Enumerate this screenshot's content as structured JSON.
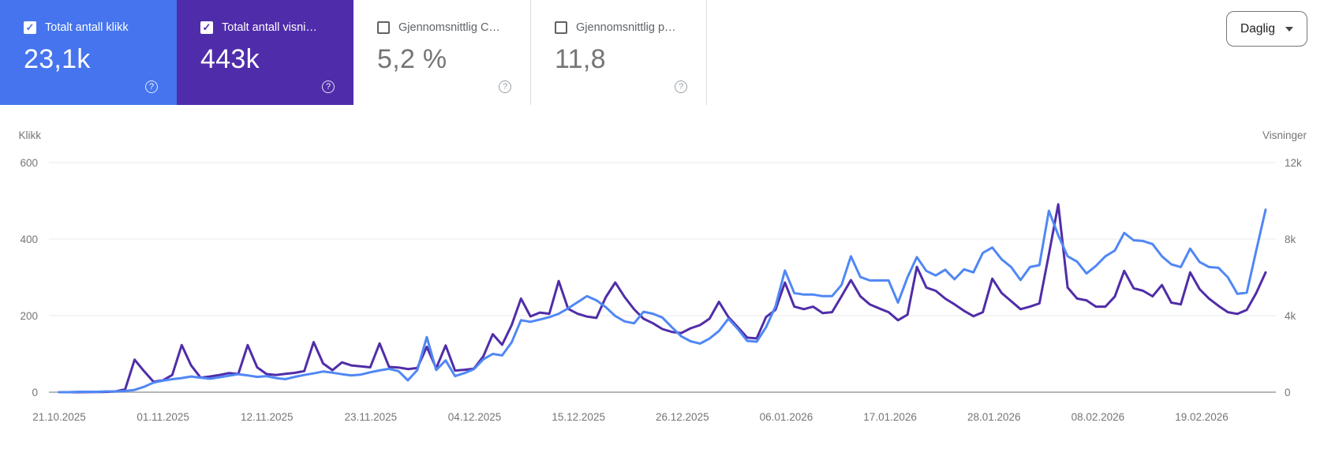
{
  "cards": [
    {
      "label": "Totalt antall klikk",
      "value": "23,1k",
      "checked": true,
      "bg": "#4574ee"
    },
    {
      "label": "Totalt antall visni…",
      "value": "443k",
      "checked": true,
      "bg": "#4f2daa"
    },
    {
      "label": "Gjennomsnittlig C…",
      "value": "5,2 %",
      "checked": false,
      "bg": ""
    },
    {
      "label": "Gjennomsnittlig p…",
      "value": "11,8",
      "checked": false,
      "bg": ""
    }
  ],
  "period_select": {
    "value": "Daglig"
  },
  "colors": {
    "clicks_line": "#5087f5",
    "impressions_line": "#502da8",
    "gridline": "#e9e9e9",
    "zero_line": "#9aa0a6",
    "axis_text": "#757575"
  },
  "chart_data": {
    "type": "line",
    "grid": "horizontal",
    "x_tick_labels": [
      "21.10.2025",
      "01.11.2025",
      "12.11.2025",
      "23.11.2025",
      "04.12.2025",
      "15.12.2025",
      "26.12.2025",
      "06.01.2026",
      "17.01.2026",
      "28.01.2026",
      "08.02.2026",
      "19.02.2026"
    ],
    "left_axis": {
      "title": "Klikk",
      "ticks_top_to_bottom": [
        "600",
        "400",
        "200",
        "0"
      ],
      "range": [
        0,
        600
      ]
    },
    "right_axis": {
      "title": "Visninger",
      "ticks_top_to_bottom": [
        "12k",
        "8k",
        "4k",
        "0"
      ],
      "range": [
        0,
        12000
      ]
    },
    "series": [
      {
        "name": "Visninger",
        "axis": "right",
        "color": "#502da8",
        "values": [
          0,
          0,
          0,
          5,
          10,
          15,
          40,
          150,
          1700,
          1100,
          550,
          620,
          900,
          2460,
          1400,
          760,
          820,
          900,
          1000,
          950,
          2460,
          1300,
          950,
          900,
          960,
          1010,
          1100,
          2620,
          1500,
          1150,
          1560,
          1400,
          1350,
          1300,
          2550,
          1320,
          1290,
          1210,
          1260,
          2370,
          1250,
          2440,
          1130,
          1170,
          1230,
          1870,
          3030,
          2480,
          3500,
          4890,
          3960,
          4160,
          4100,
          5810,
          4360,
          4100,
          3950,
          3880,
          4970,
          5730,
          4970,
          4330,
          3840,
          3600,
          3300,
          3150,
          3090,
          3340,
          3510,
          3840,
          4720,
          3930,
          3400,
          2850,
          2810,
          3930,
          4300,
          5730,
          4470,
          4340,
          4470,
          4130,
          4180,
          5010,
          5860,
          5010,
          4590,
          4380,
          4180,
          3760,
          4050,
          6550,
          5470,
          5300,
          4890,
          4590,
          4250,
          3970,
          4180,
          5930,
          5180,
          4760,
          4340,
          4470,
          4640,
          7200,
          9820,
          5470,
          4890,
          4800,
          4470,
          4470,
          5000,
          6340,
          5430,
          5300,
          5010,
          5600,
          4680,
          4590,
          6260,
          5380,
          4890,
          4510,
          4180,
          4090,
          4300,
          5180,
          6260
        ]
      },
      {
        "name": "Klikk",
        "axis": "left",
        "color": "#5087f5",
        "values": [
          0,
          0,
          1,
          1,
          1,
          2,
          2,
          3,
          6,
          14,
          25,
          30,
          34,
          37,
          41,
          38,
          35,
          39,
          43,
          47,
          44,
          40,
          42,
          37,
          34,
          40,
          45,
          49,
          54,
          51,
          47,
          44,
          46,
          52,
          57,
          61,
          55,
          31,
          58,
          144,
          58,
          83,
          42,
          50,
          60,
          86,
          100,
          96,
          130,
          188,
          184,
          190,
          196,
          205,
          219,
          235,
          251,
          240,
          222,
          199,
          185,
          180,
          210,
          205,
          195,
          170,
          146,
          133,
          127,
          140,
          160,
          192,
          165,
          134,
          132,
          170,
          224,
          318,
          259,
          255,
          255,
          251,
          251,
          280,
          355,
          301,
          292,
          292,
          292,
          234,
          300,
          353,
          317,
          305,
          320,
          295,
          321,
          313,
          364,
          378,
          347,
          327,
          293,
          327,
          332,
          474,
          410,
          355,
          341,
          310,
          330,
          355,
          370,
          416,
          397,
          395,
          387,
          355,
          334,
          327,
          375,
          340,
          327,
          325,
          300,
          257,
          260,
          370,
          477
        ]
      }
    ]
  }
}
